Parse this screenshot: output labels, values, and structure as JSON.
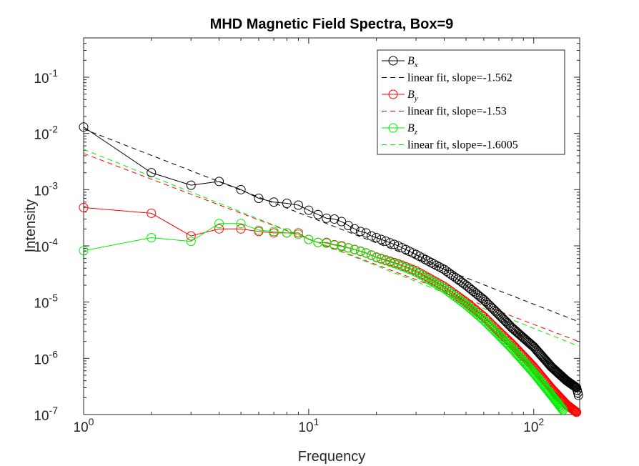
{
  "chart_data": {
    "type": "scatter",
    "title": "MHD Magnetic Field Spectra, Box=9",
    "xlabel": "Frequency",
    "ylabel": "Intensity",
    "xscale": "log",
    "yscale": "log",
    "xlim": [
      1,
      160
    ],
    "ylim": [
      1e-07,
      0.5
    ],
    "x_ticks": [
      {
        "base": "10",
        "exp": "0",
        "value": 1
      },
      {
        "base": "10",
        "exp": "1",
        "value": 10
      },
      {
        "base": "10",
        "exp": "2",
        "value": 100
      }
    ],
    "y_ticks": [
      {
        "base": "10",
        "exp": "-7",
        "value": 1e-07
      },
      {
        "base": "10",
        "exp": "-6",
        "value": 1e-06
      },
      {
        "base": "10",
        "exp": "-5",
        "value": 1e-05
      },
      {
        "base": "10",
        "exp": "-4",
        "value": 0.0001
      },
      {
        "base": "10",
        "exp": "-3",
        "value": 0.001
      },
      {
        "base": "10",
        "exp": "-2",
        "value": 0.01
      },
      {
        "base": "10",
        "exp": "-1",
        "value": 0.1
      }
    ],
    "grid": false,
    "legend_position": "top-right",
    "series": [
      {
        "name": "B_x",
        "legend_symbol": "B",
        "legend_sub": "x",
        "color": "#000000",
        "marker": "circle",
        "line": "solid",
        "x": [
          1,
          2,
          3,
          4,
          5,
          6,
          7,
          8,
          9,
          10,
          11,
          12,
          13,
          14,
          15,
          16,
          17,
          18,
          19,
          20
        ],
        "y": [
          0.013,
          0.002,
          0.0012,
          0.0014,
          0.001,
          0.0007,
          0.0006,
          0.00057,
          0.00053,
          0.00043,
          0.00036,
          0.00031,
          0.0003,
          0.00027,
          0.00023,
          0.0002,
          0.00018,
          0.00017,
          0.00015,
          0.00014
        ],
        "tail": [
          [
            20,
            0.00014
          ],
          [
            25,
            0.0001
          ],
          [
            30,
            7e-05
          ],
          [
            40,
            3.8e-05
          ],
          [
            50,
            2e-05
          ],
          [
            60,
            1.1e-05
          ],
          [
            70,
            6e-06
          ],
          [
            80,
            3.5e-06
          ],
          [
            100,
            1.6e-06
          ],
          [
            120,
            7e-07
          ],
          [
            140,
            4e-07
          ],
          [
            155,
            3e-07
          ],
          [
            158,
            2.2e-07
          ]
        ]
      },
      {
        "name": "linear fit, slope=-1.562",
        "color": "#000000",
        "line": "dashed",
        "marker": "none",
        "x": [
          1,
          158
        ],
        "y": [
          0.012,
          4.5e-06
        ]
      },
      {
        "name": "B_y",
        "legend_symbol": "B",
        "legend_sub": "y",
        "color": "#ff0000",
        "marker": "circle",
        "line": "solid",
        "x": [
          1,
          2,
          3,
          4,
          5,
          6,
          7,
          8,
          9,
          10,
          11,
          12,
          13,
          14,
          15,
          16,
          17,
          18,
          19,
          20
        ],
        "y": [
          0.00048,
          0.00038,
          0.00015,
          0.0002,
          0.0002,
          0.00018,
          0.00017,
          0.00017,
          0.00017,
          0.00013,
          0.000115,
          0.000115,
          0.000105,
          0.0001,
          9.25e-05,
          8.65e-05,
          8.05e-05,
          7.5e-05,
          6.85e-05,
          6.3e-05
        ],
        "tail": [
          [
            20,
            6.3e-05
          ],
          [
            25,
            4.8e-05
          ],
          [
            30,
            3.6e-05
          ],
          [
            40,
            1.9e-05
          ],
          [
            50,
            1e-05
          ],
          [
            60,
            5.5e-06
          ],
          [
            70,
            3e-06
          ],
          [
            80,
            1.8e-06
          ],
          [
            100,
            7e-07
          ],
          [
            120,
            2.9e-07
          ],
          [
            140,
            1.5e-07
          ],
          [
            155,
            1.1e-07
          ]
        ]
      },
      {
        "name": "linear fit, slope=-1.53",
        "color": "#ff0000",
        "line": "dashed",
        "marker": "none",
        "x": [
          1,
          158
        ],
        "y": [
          0.0044,
          2e-06
        ]
      },
      {
        "name": "B_z",
        "legend_symbol": "B",
        "legend_sub": "z",
        "color": "#00ee00",
        "marker": "circle",
        "line": "solid",
        "x": [
          1,
          2,
          3,
          4,
          5,
          6,
          7,
          8,
          9,
          10,
          11,
          12,
          13,
          14,
          15,
          16,
          17,
          18,
          19,
          20
        ],
        "y": [
          8.2e-05,
          0.00014,
          0.00012,
          0.00025,
          0.00025,
          0.00019,
          0.00018,
          0.00017,
          0.00016,
          0.00013,
          0.000115,
          0.000112,
          0.000103,
          9.75e-05,
          9.15e-05,
          8.55e-05,
          7.95e-05,
          7.4e-05,
          6.75e-05,
          6.2e-05
        ],
        "tail": [
          [
            20,
            6.2e-05
          ],
          [
            25,
            4.6e-05
          ],
          [
            30,
            3.4e-05
          ],
          [
            40,
            1.75e-05
          ],
          [
            50,
            9e-06
          ],
          [
            60,
            4.8e-06
          ],
          [
            70,
            2.6e-06
          ],
          [
            80,
            1.5e-06
          ],
          [
            100,
            5.5e-07
          ],
          [
            120,
            2.2e-07
          ],
          [
            135,
            1.2e-07
          ]
        ]
      },
      {
        "name": "linear fit, slope=-1.6005",
        "color": "#00ee00",
        "line": "dashed",
        "marker": "none",
        "x": [
          1,
          158
        ],
        "y": [
          0.0052,
          1.65e-06
        ]
      }
    ]
  }
}
